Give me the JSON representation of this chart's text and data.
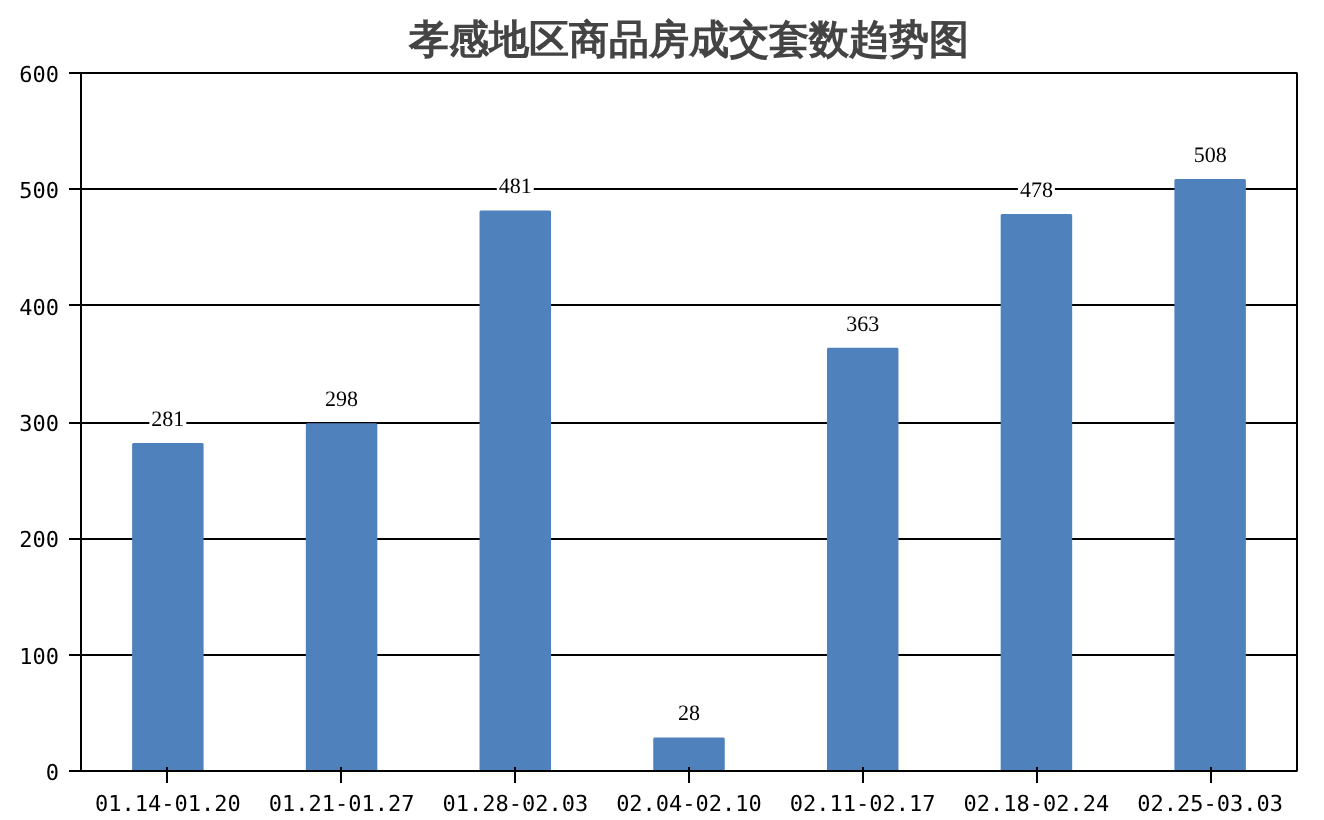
{
  "chart_data": {
    "type": "bar",
    "title": "孝感地区商品房成交套数趋势图",
    "categories": [
      "01.14-01.20",
      "01.21-01.27",
      "01.28-02.03",
      "02.04-02.10",
      "02.11-02.17",
      "02.18-02.24",
      "02.25-03.03"
    ],
    "values": [
      281,
      298,
      481,
      28,
      363,
      478,
      508
    ],
    "color": "#4f81bd",
    "ylim": [
      0,
      600
    ],
    "yticks": [
      0,
      100,
      200,
      300,
      400,
      500,
      600
    ],
    "grid": "y",
    "data_labels": true
  }
}
